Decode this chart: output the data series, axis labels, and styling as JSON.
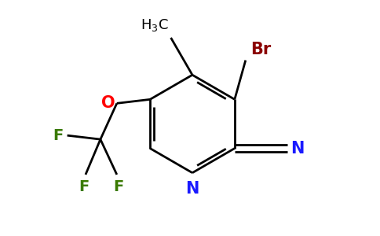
{
  "bg_color": "#ffffff",
  "bond_color": "#000000",
  "N_color": "#1a1aff",
  "O_color": "#ff0000",
  "F_color": "#3a7a00",
  "Br_color": "#8b0000",
  "line_width": 2.0,
  "figsize": [
    4.84,
    3.0
  ],
  "dpi": 100,
  "xlim": [
    0,
    9.68
  ],
  "ylim": [
    0,
    6.0
  ]
}
